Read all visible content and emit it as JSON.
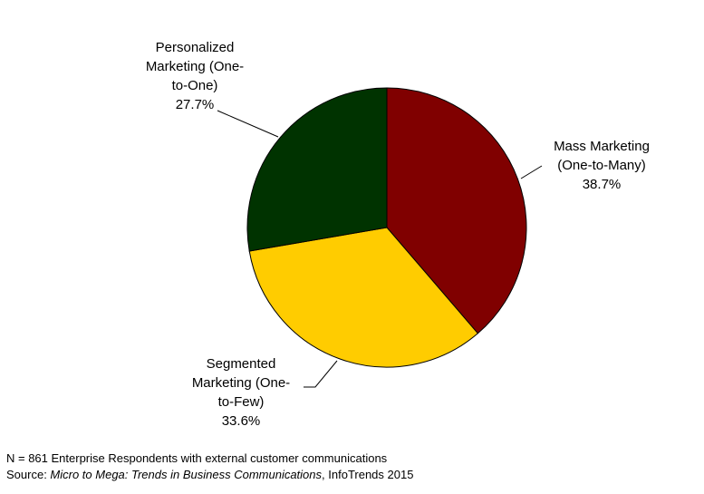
{
  "chart_data": {
    "type": "pie",
    "title": "",
    "start_angle_deg": 0,
    "direction": "clockwise",
    "slices": [
      {
        "name": "Mass Marketing (One-to-Many)",
        "label_lines": [
          "Mass Marketing",
          "(One-to-Many)"
        ],
        "value": 38.7,
        "value_label": "38.7%",
        "color": "#800000"
      },
      {
        "name": "Segmented Marketing (One-to-Few)",
        "label_lines": [
          "Segmented",
          "Marketing (One-",
          "to-Few)"
        ],
        "value": 33.6,
        "value_label": "33.6%",
        "color": "#FFCC00"
      },
      {
        "name": "Personalized Marketing (One-to-One)",
        "label_lines": [
          "Personalized",
          "Marketing (One-",
          "to-One)"
        ],
        "value": 27.7,
        "value_label": "27.7%",
        "color": "#003300"
      }
    ]
  },
  "footnote": {
    "note": "N = 861 Enterprise Respondents with external customer communications",
    "source_prefix": "Source: ",
    "source_title": "Micro to Mega: Trends in Business Communications",
    "source_suffix": ", InfoTrends 2015"
  }
}
